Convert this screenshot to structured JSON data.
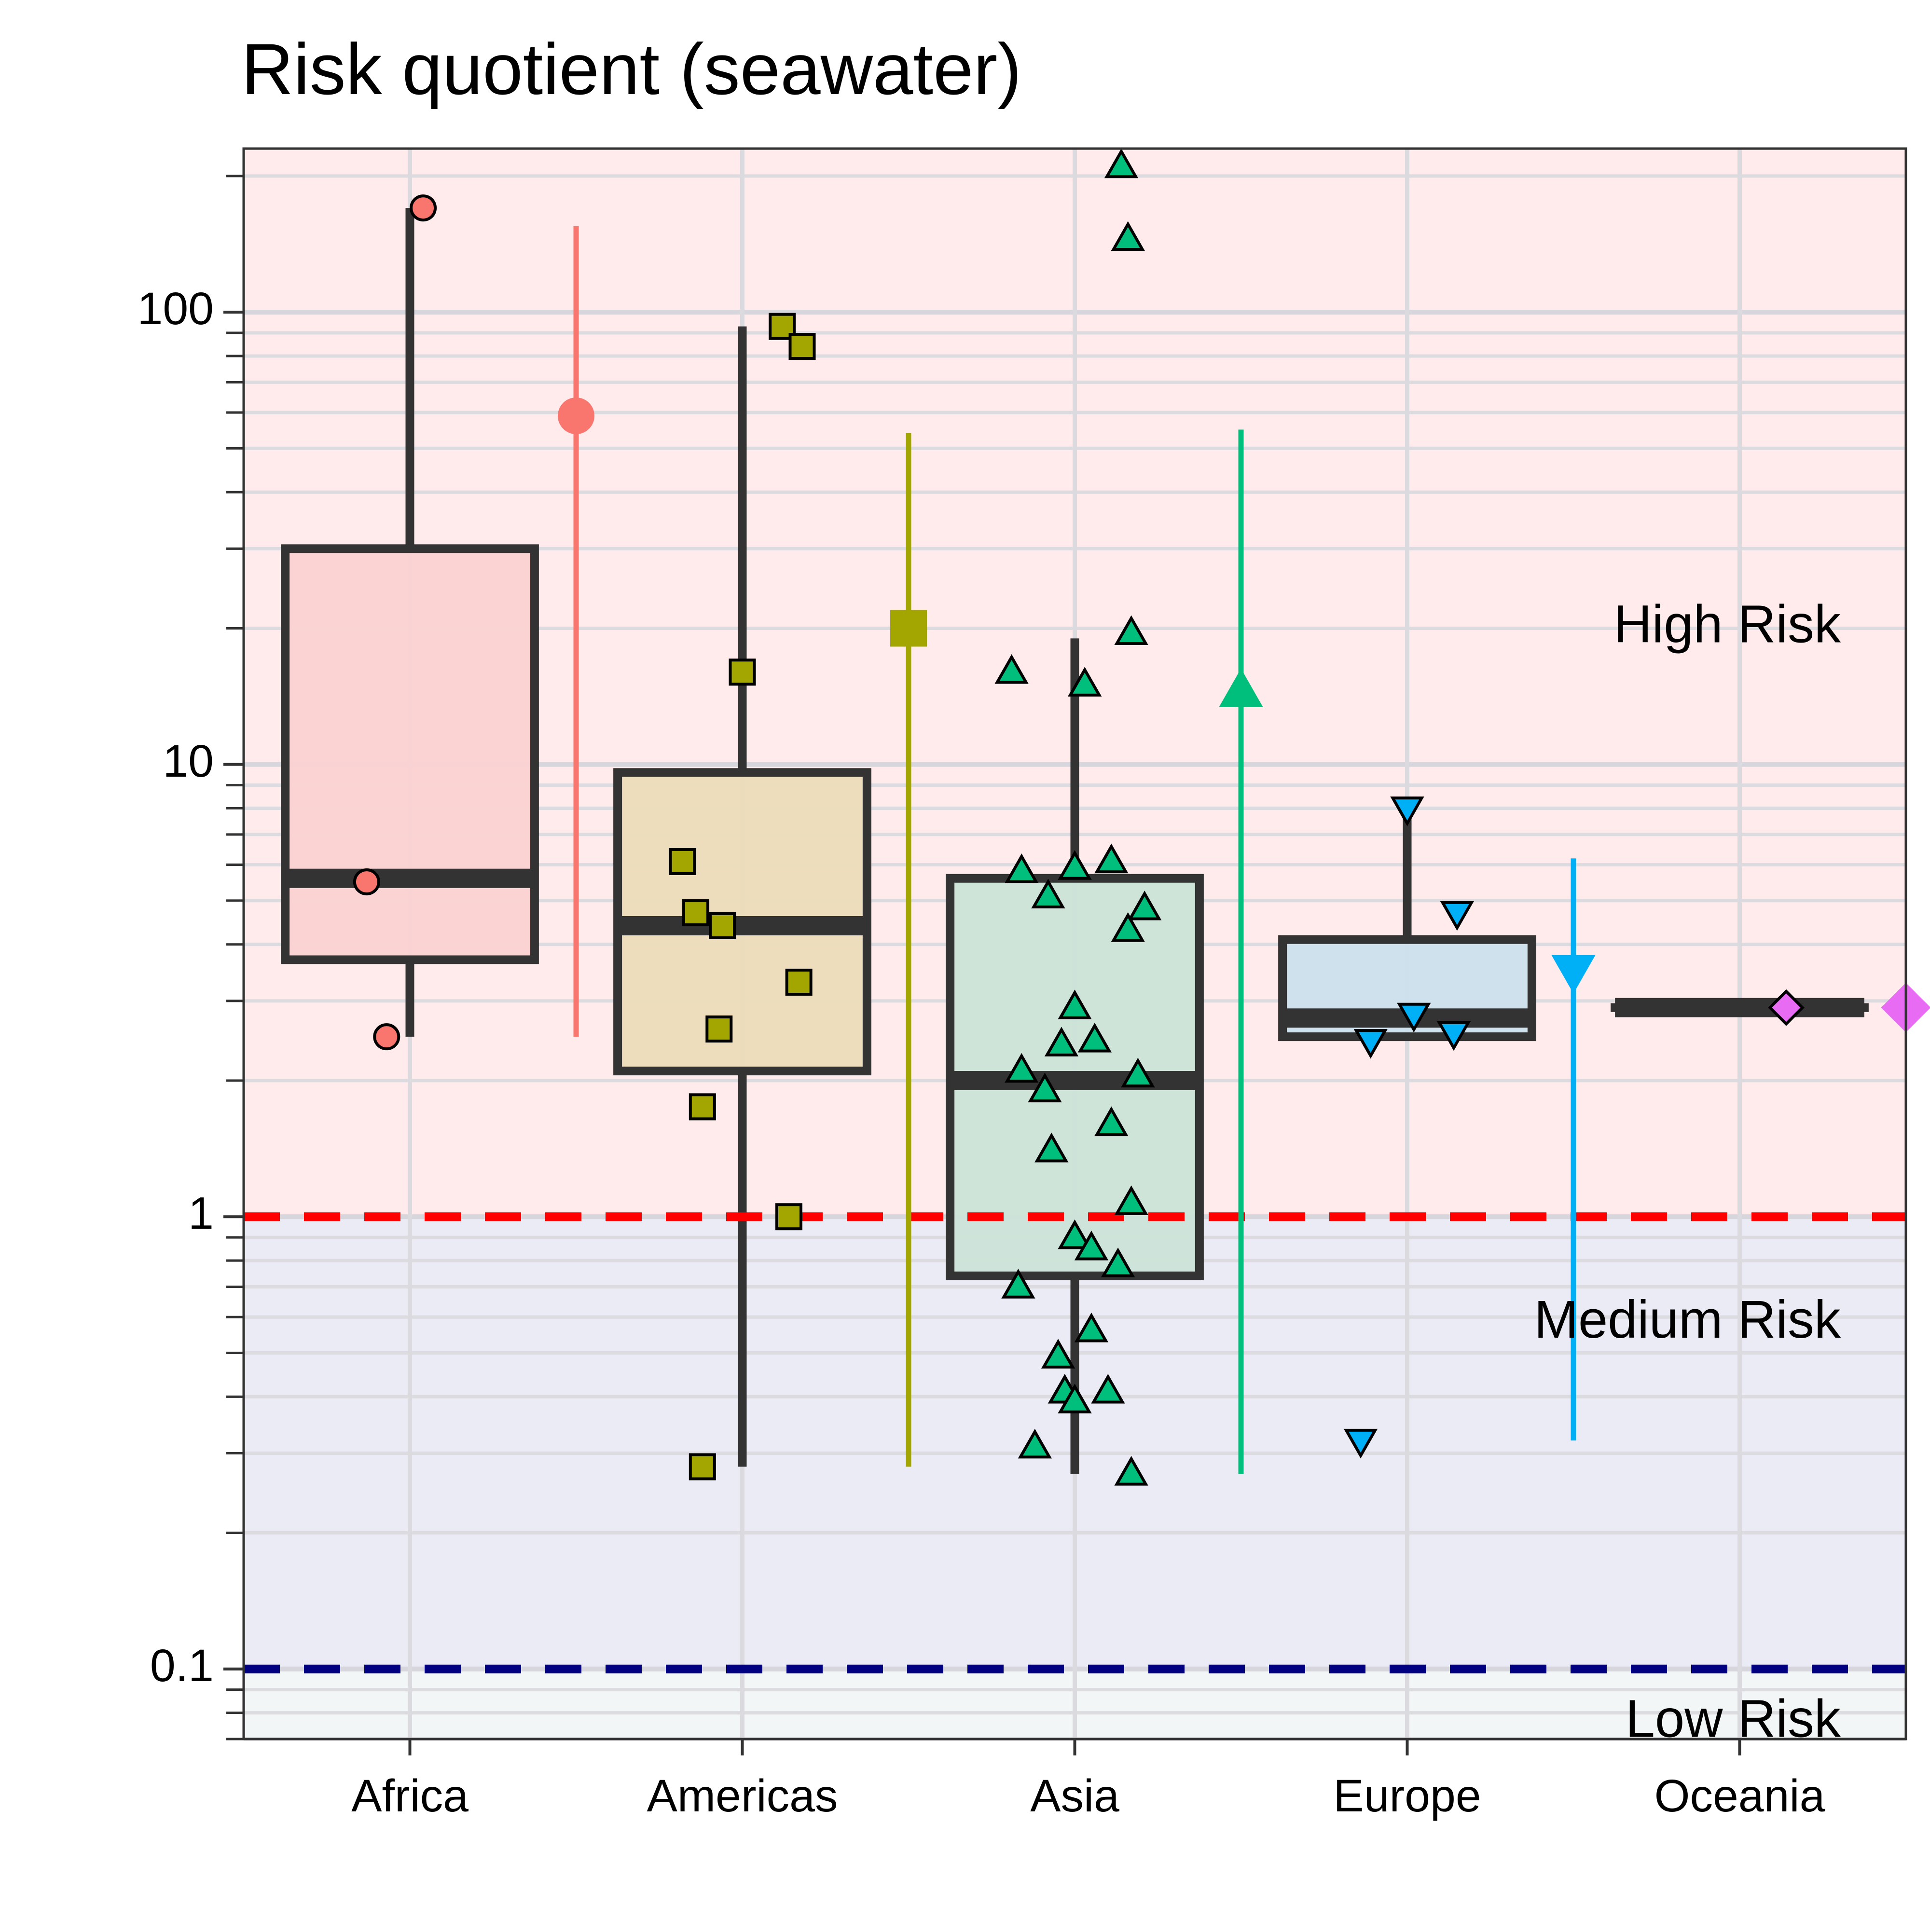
{
  "chart_data": {
    "type": "box",
    "title": "Risk quotient (seawater)",
    "xlabel": "",
    "ylabel": "",
    "y_scale": "log10",
    "ylim": [
      0.07,
      230
    ],
    "y_ticks": [
      {
        "value": 0.1,
        "label": "0.1"
      },
      {
        "value": 1,
        "label": "1"
      },
      {
        "value": 10,
        "label": "10"
      },
      {
        "value": 100,
        "label": "100"
      }
    ],
    "categories": [
      "Africa",
      "Americas",
      "Asia",
      "Europe",
      "Oceania"
    ],
    "thresholds": [
      {
        "value": 1,
        "color": "#ff0000"
      },
      {
        "value": 0.1,
        "color": "#000080"
      }
    ],
    "zones": [
      {
        "label": "High Risk",
        "from": 1,
        "to": 230,
        "fill": "#ffebeb",
        "label_y": 20
      },
      {
        "label": "Medium Risk",
        "from": 0.1,
        "to": 1,
        "fill": "#ebebf5",
        "label_y": 0.58
      },
      {
        "label": "Low Risk",
        "from": 0.07,
        "to": 0.1,
        "fill": "#f3f6f6",
        "label_y": 0.076
      }
    ],
    "grid": true,
    "legend": "none",
    "series": [
      {
        "category": "Africa",
        "color": "#f8766d",
        "box_fill": "#fbd2d2",
        "shape": "circle",
        "box": {
          "whisker_low": 2.5,
          "q1": 3.7,
          "median": 5.6,
          "q3": 30,
          "whisker_high": 170
        },
        "points": [
          {
            "x": 0.04,
            "y": 170
          },
          {
            "x": -0.13,
            "y": 5.5
          },
          {
            "x": -0.07,
            "y": 2.5
          }
        ],
        "summary": {
          "mean": 59,
          "low": 2.5,
          "high": 155
        }
      },
      {
        "category": "Americas",
        "color": "#a3a500",
        "box_fill": "#ecdcb9",
        "shape": "square",
        "box": {
          "whisker_low": 0.28,
          "q1": 2.1,
          "median": 4.4,
          "q3": 9.6,
          "whisker_high": 93
        },
        "points": [
          {
            "x": 0.12,
            "y": 93
          },
          {
            "x": 0.18,
            "y": 84
          },
          {
            "x": 0.0,
            "y": 16
          },
          {
            "x": -0.18,
            "y": 6.1
          },
          {
            "x": -0.14,
            "y": 4.7
          },
          {
            "x": -0.06,
            "y": 4.4
          },
          {
            "x": 0.17,
            "y": 3.3
          },
          {
            "x": -0.07,
            "y": 2.6
          },
          {
            "x": -0.12,
            "y": 1.75
          },
          {
            "x": 0.14,
            "y": 1.0
          },
          {
            "x": -0.12,
            "y": 0.28
          }
        ],
        "summary": {
          "mean": 20,
          "low": 0.28,
          "high": 54
        }
      },
      {
        "category": "Asia",
        "color": "#00bf7d",
        "box_fill": "#cce4d8",
        "shape": "triangle",
        "box": {
          "whisker_low": 0.27,
          "q1": 0.74,
          "median": 2.0,
          "q3": 5.6,
          "whisker_high": 19
        },
        "points": [
          {
            "x": 0.14,
            "y": 210
          },
          {
            "x": 0.16,
            "y": 145
          },
          {
            "x": 0.17,
            "y": 19.5
          },
          {
            "x": -0.19,
            "y": 16
          },
          {
            "x": 0.03,
            "y": 15
          },
          {
            "x": 0.11,
            "y": 6.1
          },
          {
            "x": -0.16,
            "y": 5.8
          },
          {
            "x": 0.0,
            "y": 5.9
          },
          {
            "x": -0.08,
            "y": 5.1
          },
          {
            "x": 0.21,
            "y": 4.8
          },
          {
            "x": 0.16,
            "y": 4.3
          },
          {
            "x": 0.0,
            "y": 2.9
          },
          {
            "x": -0.04,
            "y": 2.4
          },
          {
            "x": 0.06,
            "y": 2.45
          },
          {
            "x": -0.16,
            "y": 2.1
          },
          {
            "x": -0.09,
            "y": 1.9
          },
          {
            "x": 0.19,
            "y": 2.05
          },
          {
            "x": 0.11,
            "y": 1.6
          },
          {
            "x": -0.07,
            "y": 1.4
          },
          {
            "x": 0.17,
            "y": 1.07
          },
          {
            "x": 0.0,
            "y": 0.9
          },
          {
            "x": 0.05,
            "y": 0.85
          },
          {
            "x": 0.13,
            "y": 0.78
          },
          {
            "x": -0.17,
            "y": 0.7
          },
          {
            "x": 0.05,
            "y": 0.56
          },
          {
            "x": -0.05,
            "y": 0.49
          },
          {
            "x": -0.03,
            "y": 0.41
          },
          {
            "x": 0.1,
            "y": 0.41
          },
          {
            "x": 0.0,
            "y": 0.39
          },
          {
            "x": -0.12,
            "y": 0.31
          },
          {
            "x": 0.17,
            "y": 0.27
          }
        ],
        "summary": {
          "mean": 14.5,
          "low": 0.27,
          "high": 55
        }
      },
      {
        "category": "Europe",
        "color": "#00b0f6",
        "box_fill": "#cce0ec",
        "shape": "triangle-down",
        "box": {
          "whisker_low": 2.5,
          "q1": 2.5,
          "median": 2.75,
          "q3": 4.1,
          "whisker_high": 8.0
        },
        "points": [
          {
            "x": 0.0,
            "y": 8.0
          },
          {
            "x": 0.15,
            "y": 4.7
          },
          {
            "x": 0.02,
            "y": 2.8
          },
          {
            "x": 0.14,
            "y": 2.55
          },
          {
            "x": -0.11,
            "y": 2.45
          },
          {
            "x": -0.14,
            "y": 0.32
          }
        ],
        "summary": {
          "mean": 3.5,
          "low": 0.32,
          "high": 6.2
        }
      },
      {
        "category": "Oceania",
        "color": "#e76bf3",
        "box_fill": "#f1d2f3",
        "shape": "diamond",
        "box": {
          "whisker_low": 2.9,
          "q1": 2.9,
          "median": 2.9,
          "q3": 2.9,
          "whisker_high": 2.9
        },
        "points": [
          {
            "x": 0.14,
            "y": 2.9
          }
        ],
        "summary": {
          "mean": 2.9,
          "low": 2.9,
          "high": 2.9
        }
      }
    ]
  }
}
